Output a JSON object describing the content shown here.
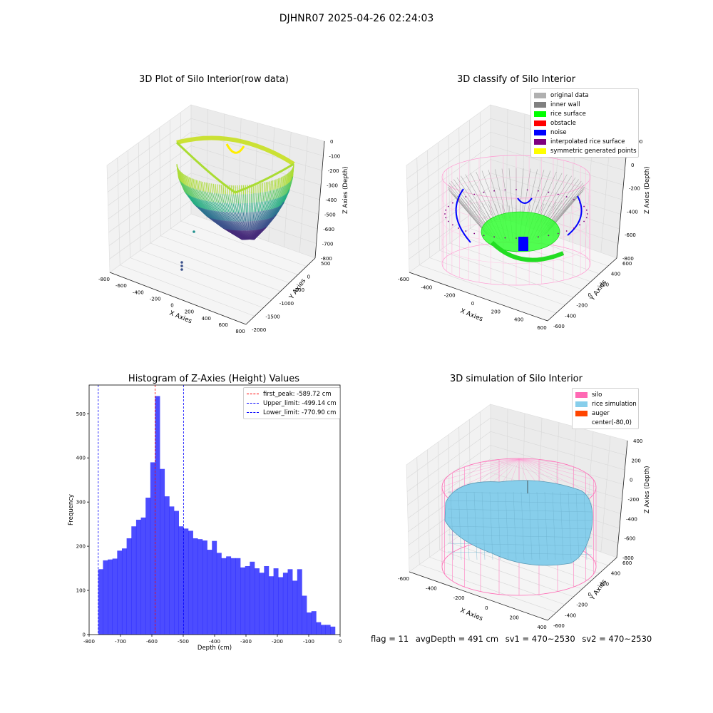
{
  "page": {
    "title": "DJHNR07 2025-04-26 02:24:03"
  },
  "panels": {
    "raw": {
      "title": "3D Plot of Silo Interior(row data)",
      "xlabel": "X Axies",
      "ylabel": "Y Axies",
      "zlabel": "Z Axies (Depth)",
      "xticks": [
        "-800",
        "-600",
        "-400",
        "-200",
        "0",
        "200",
        "400",
        "600",
        "800"
      ],
      "yticks": [
        "500",
        "0",
        "-500",
        "-1000",
        "-1500",
        "-2000"
      ],
      "zticks": [
        "0",
        "-100",
        "-200",
        "-300",
        "-400",
        "-500",
        "-600",
        "-700",
        "-800"
      ]
    },
    "classify": {
      "title": "3D classify of Silo Interior",
      "xlabel": "X Axies",
      "ylabel": "Y Axies",
      "zlabel": "Z Axies (Depth)",
      "xticks": [
        "-600",
        "-400",
        "-200",
        "0",
        "200",
        "400",
        "600"
      ],
      "yticks": [
        "600",
        "400",
        "200",
        "0",
        "-200",
        "-400",
        "-600"
      ],
      "zticks": [
        "200",
        "0",
        "-200",
        "-400",
        "-600",
        "-800"
      ],
      "legend": [
        {
          "label": "original data",
          "color": "#b0b0b0"
        },
        {
          "label": "inner wall",
          "color": "#808080"
        },
        {
          "label": "rice surface",
          "color": "#00ff00"
        },
        {
          "label": "obstacle",
          "color": "#ff0000"
        },
        {
          "label": "noise",
          "color": "#0000ff"
        },
        {
          "label": "interpolated rice surface",
          "color": "#800080"
        },
        {
          "label": "symmetric generated points",
          "color": "#ffff00"
        }
      ]
    },
    "simulation": {
      "title": "3D simulation of Silo Interior",
      "xlabel": "X Axies",
      "ylabel": "Y Axies",
      "zlabel": "Z Axies (Depth)",
      "xticks": [
        "-600",
        "-400",
        "-200",
        "0",
        "200",
        "400"
      ],
      "yticks": [
        "600",
        "400",
        "200",
        "0",
        "-200",
        "-400",
        "-600"
      ],
      "zticks": [
        "400",
        "200",
        "0",
        "-200",
        "-400",
        "-600",
        "-800"
      ],
      "legend": [
        {
          "label": "silo",
          "color": "#ff69b4"
        },
        {
          "label": "rice simulation",
          "color": "#87ceeb"
        },
        {
          "label": "auger",
          "color": "#ff4500"
        },
        {
          "label": "center(-80,0)",
          "color": ""
        }
      ]
    }
  },
  "footer": {
    "flag": "flag = 11",
    "avg": "avgDepth = 491 cm",
    "sv1": "sv1 = 470~2530",
    "sv2": "sv2 = 470~2530"
  },
  "chart_data": [
    {
      "type": "scatter",
      "title": "3D Plot of Silo Interior(row data)",
      "xlabel": "X Axies",
      "ylabel": "Y Axies",
      "zlabel": "Z Axies (Depth)",
      "xlim": [
        -800,
        800
      ],
      "ylim": [
        -2000,
        500
      ],
      "zlim": [
        -800,
        0
      ],
      "colormap": "viridis",
      "grid": true
    },
    {
      "type": "scatter",
      "title": "3D classify of Silo Interior",
      "xlabel": "X Axies",
      "ylabel": "Y Axies",
      "zlabel": "Z Axies (Depth)",
      "xlim": [
        -600,
        600
      ],
      "ylim": [
        -600,
        600
      ],
      "zlim": [
        -800,
        200
      ],
      "legend_placement": "top-right",
      "grid": true
    },
    {
      "type": "bar",
      "title": "Histogram of Z-Axies (Height) Values",
      "xlabel": "Depth (cm)",
      "ylabel": "Frequency",
      "xlim": [
        -800,
        0
      ],
      "ylim": [
        0,
        565
      ],
      "xticks": [
        -800,
        -700,
        -600,
        -500,
        -400,
        -300,
        -200,
        -100,
        0
      ],
      "yticks": [
        0,
        100,
        200,
        300,
        400,
        500
      ],
      "bin_start": -771,
      "bin_width": 15.1,
      "values": [
        148,
        168,
        170,
        172,
        190,
        195,
        218,
        245,
        260,
        265,
        310,
        390,
        540,
        375,
        313,
        290,
        280,
        245,
        240,
        235,
        218,
        216,
        213,
        192,
        212,
        185,
        173,
        177,
        173,
        173,
        152,
        155,
        165,
        150,
        140,
        155,
        132,
        150,
        130,
        140,
        148,
        122,
        148,
        88,
        50,
        53,
        28,
        22,
        22,
        18
      ],
      "bar_color": "#0000ff",
      "vlines": [
        {
          "x": -589.72,
          "label": "first_peak: -589.72 cm",
          "color": "#ff0000"
        },
        {
          "x": -499.14,
          "label": "Upper_limit: -499.14 cm",
          "color": "#0000ff"
        },
        {
          "x": -770.9,
          "label": "Lower_limit: -770.90 cm",
          "color": "#0000ff"
        }
      ],
      "legend_placement": "top-right"
    },
    {
      "type": "area",
      "title": "3D simulation of Silo Interior",
      "xlabel": "X Axies",
      "ylabel": "Y Axies",
      "zlabel": "Z Axies (Depth)",
      "xlim": [
        -600,
        500
      ],
      "ylim": [
        -600,
        600
      ],
      "zlim": [
        -800,
        400
      ],
      "legend_placement": "top-right",
      "grid": true
    }
  ]
}
